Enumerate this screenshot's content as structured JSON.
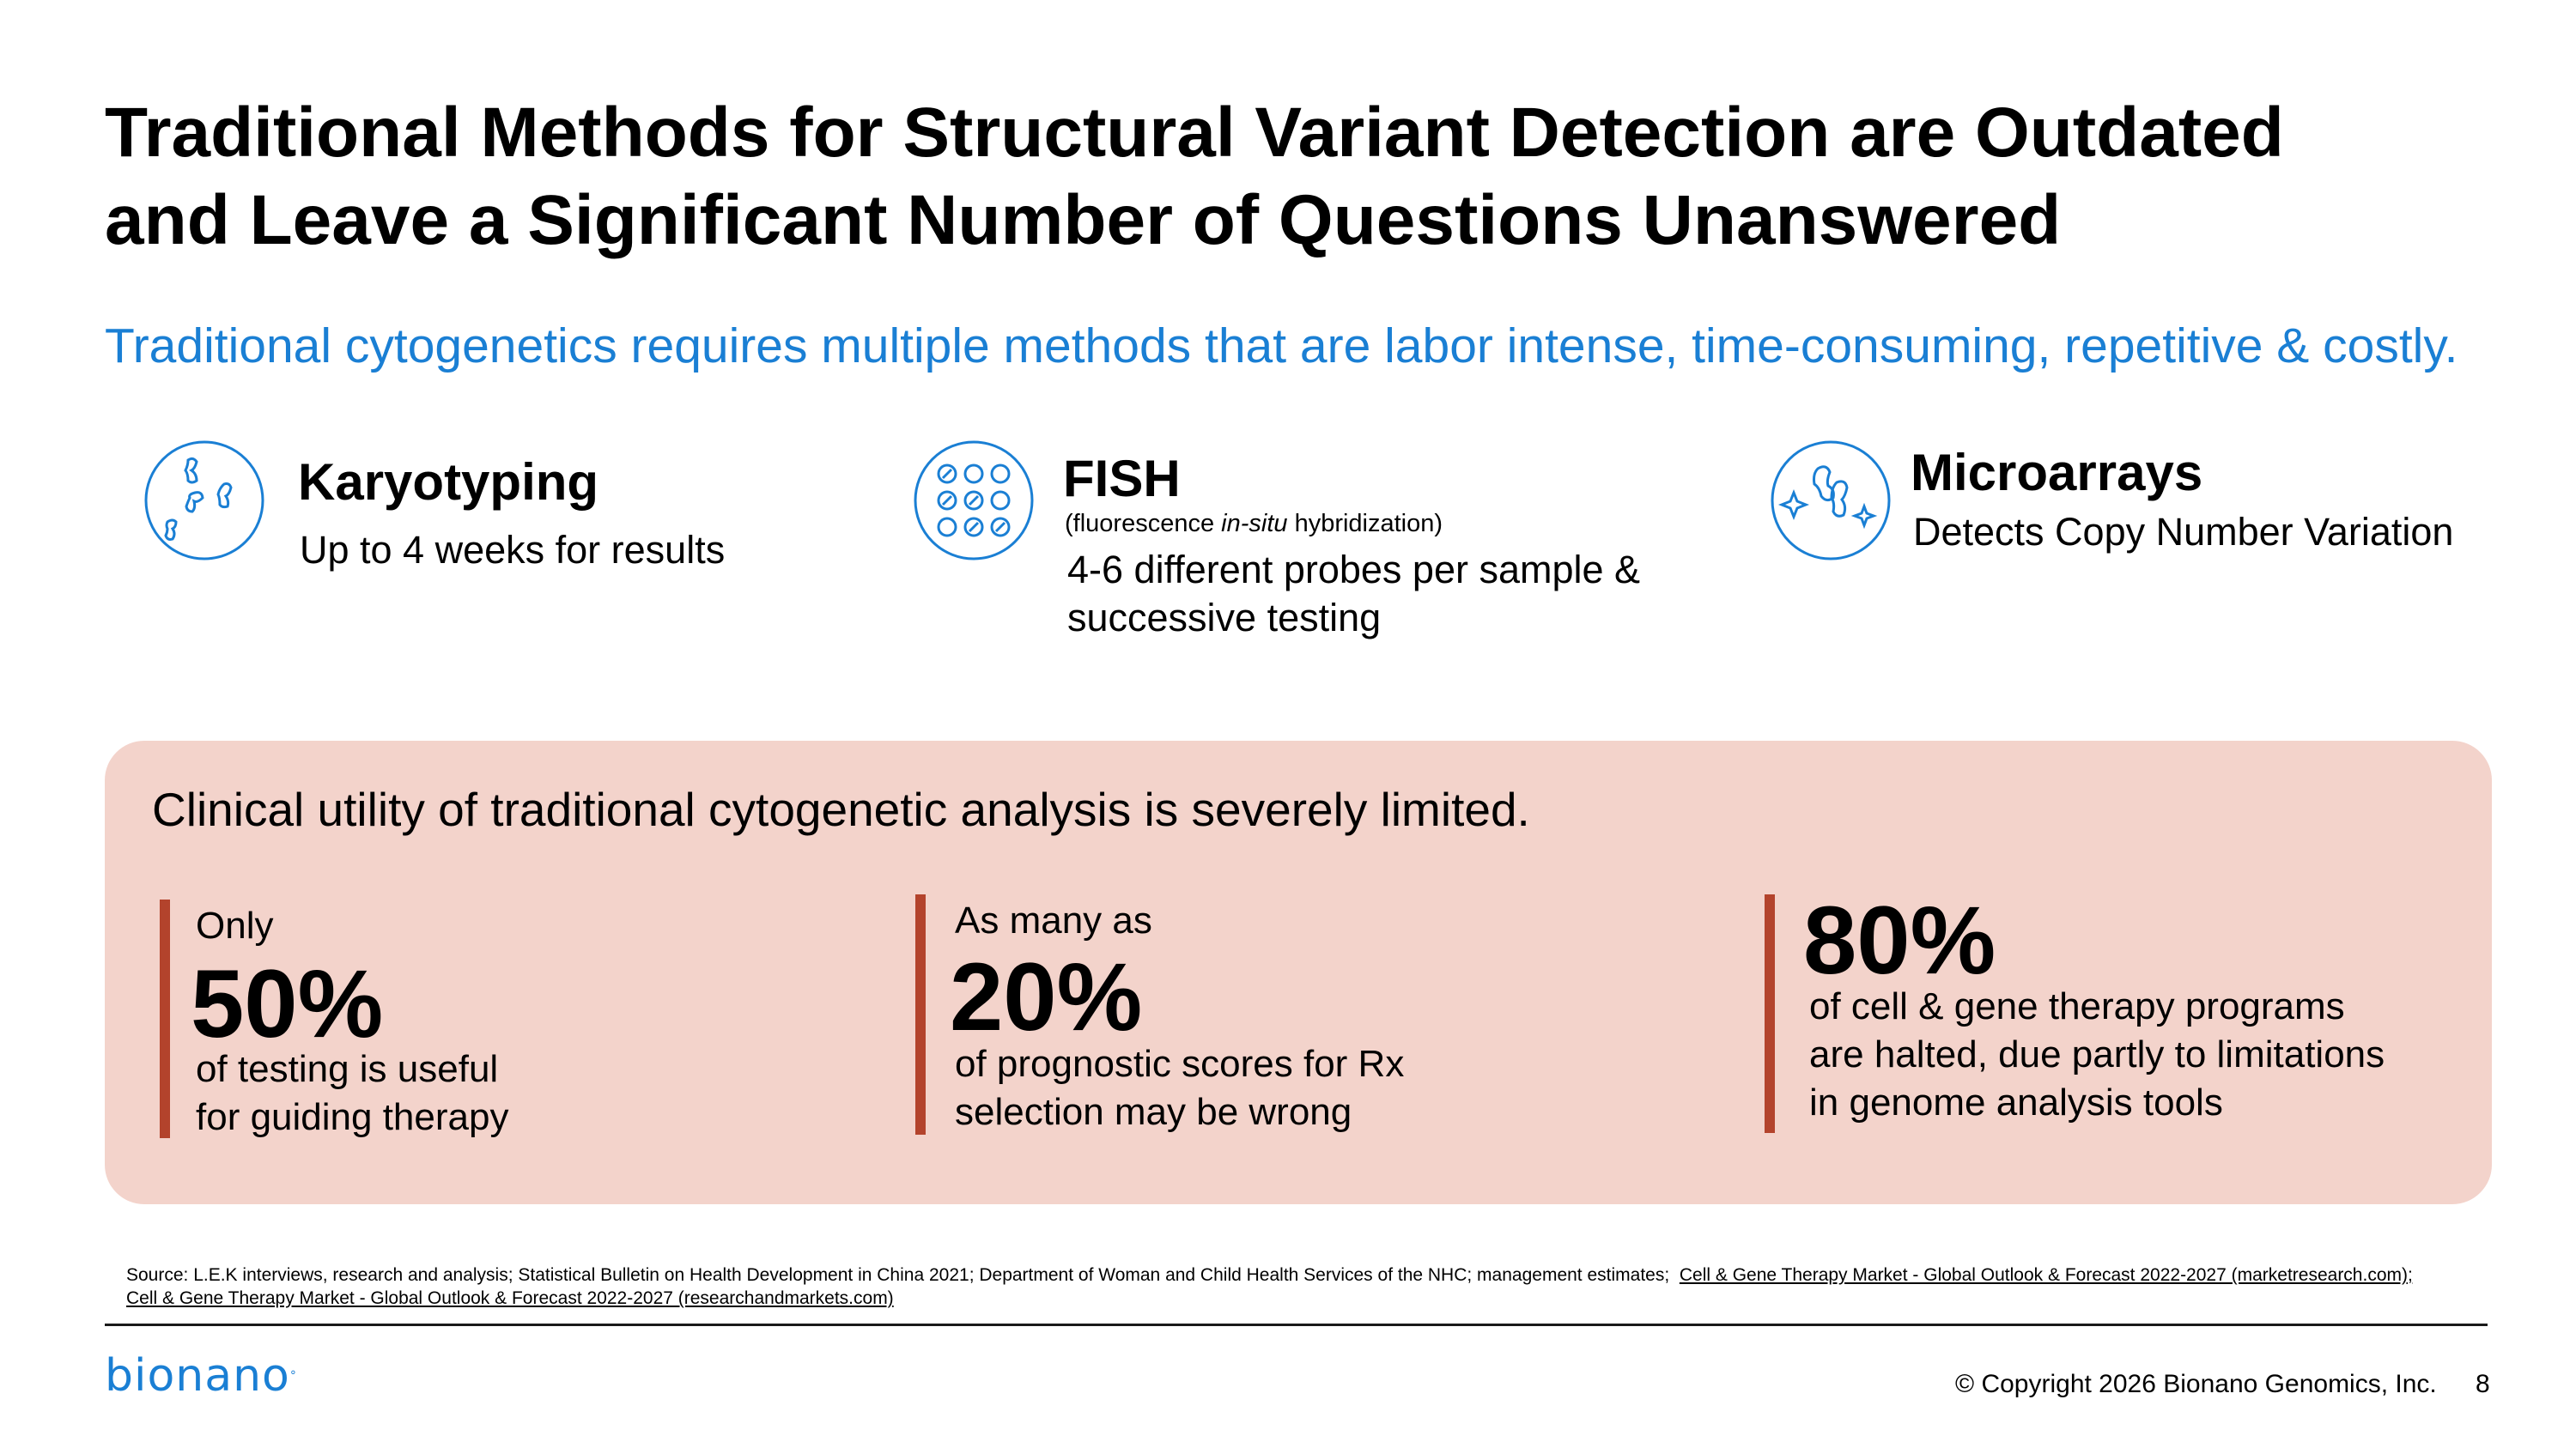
{
  "title_line1": "Traditional Methods for Structural Variant Detection are Outdated",
  "title_line2": "and Leave a Significant Number of Questions Unanswered",
  "subtitle": "Traditional cytogenetics requires multiple methods that are labor intense, time-consuming, repetitive & costly.",
  "methods": [
    {
      "icon": "chromosome-icon",
      "name": "Karyotyping",
      "desc": "Up to 4 weeks for results"
    },
    {
      "icon": "fish-probe-grid-icon",
      "name": "FISH",
      "sub_pre": "(fluorescence ",
      "sub_em": "in-situ",
      "sub_post": " hybridization)",
      "desc_line1": "4-6 different probes per sample &",
      "desc_line2": "successive testing"
    },
    {
      "icon": "microarray-sparkle-icon",
      "name": "Microarrays",
      "desc": "Detects Copy Number Variation"
    }
  ],
  "panel": {
    "title": "Clinical utility of traditional cytogenetic analysis is severely limited.",
    "stats": [
      {
        "lead": "Only",
        "value": "50%",
        "desc": "of testing is useful\nfor guiding therapy"
      },
      {
        "lead": "As many as",
        "value": "20%",
        "desc": "of prognostic scores for Rx\nselection may be wrong"
      },
      {
        "lead": "",
        "value": "80%",
        "desc": "of cell & gene therapy programs\nare halted, due partly to limitations\nin genome analysis tools"
      }
    ]
  },
  "footer": {
    "source_prefix": "Source: L.E.K interviews, research and analysis; Statistical Bulletin on Health Development in China 2021; Department of Woman and Child Health Services of the NHC; management estimates;",
    "source_link1": "Cell & Gene Therapy Market - Global Outlook & Forecast 2022-2027 (marketresearch.com);",
    "source_link2": "Cell & Gene Therapy Market - Global Outlook & Forecast 2022-2027 (researchandmarkets.com)",
    "logo": "bionano",
    "copyright": "© Copyright 2026 Bionano Genomics, Inc.",
    "page_number": "8"
  },
  "colors": {
    "accent_blue": "#1a7fd4",
    "panel_bg": "#f3d3cb",
    "bar": "#b3432c"
  }
}
